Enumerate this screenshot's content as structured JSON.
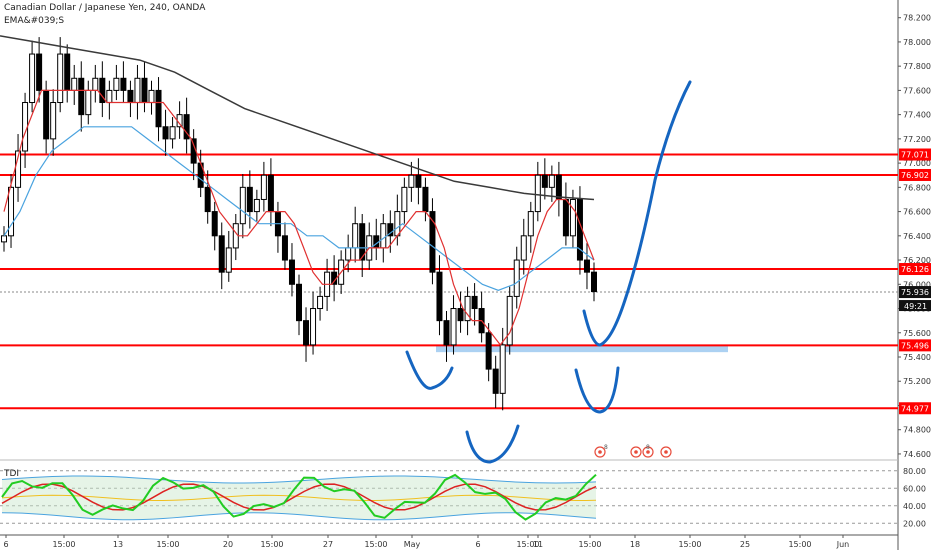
{
  "header": {
    "title": "Canadian Dollar / Japanese Yen, 240, OANDA",
    "indicator": "EMA&#039;S"
  },
  "indicator_pane": {
    "name": "TDI",
    "scale": [
      "80.00",
      "60.00",
      "40.00",
      "20.00"
    ]
  },
  "colors": {
    "candle": "#000000",
    "ema_fast": "#e03030",
    "ema_mid": "#4aa3df",
    "ema_slow": "#3a3a3a",
    "level_line": "#ff0000",
    "zone": "#9ec9f0",
    "drawing": "#1565c0",
    "tdi_green": "#22cc22",
    "tdi_red": "#dd2222",
    "tdi_band": "#4aa3df"
  },
  "chart_data": {
    "type": "candlestick",
    "title": "Canadian Dollar / Japanese Yen, 240, OANDA",
    "y_ticks": [
      "78.200",
      "78.000",
      "77.800",
      "77.600",
      "77.400",
      "77.200",
      "77.000",
      "76.800",
      "76.600",
      "76.400",
      "76.200",
      "76.000",
      "75.800",
      "75.600",
      "75.400",
      "75.200",
      "75.000",
      "74.800",
      "74.600"
    ],
    "x_ticks": [
      "6",
      "15:00",
      "13",
      "15:00",
      "20",
      "15:00",
      "27",
      "15:00",
      "May",
      "6",
      "15:00",
      "11",
      "15:00",
      "18",
      "15:00",
      "25",
      "15:00",
      "Jun"
    ],
    "ylim": [
      74.55,
      78.28
    ],
    "levels": [
      {
        "label": "77.071",
        "value": 77.071
      },
      {
        "label": "76.902",
        "value": 76.902
      },
      {
        "label": "76.126",
        "value": 76.126
      },
      {
        "label": "75.496",
        "value": 75.496
      },
      {
        "label": "74.977",
        "value": 74.977
      }
    ],
    "current_price": {
      "label": "75.936",
      "value": 75.936,
      "countdown": "49:21"
    },
    "zone": {
      "from": 75.44,
      "to": 75.5
    },
    "close_series": [
      76.4,
      76.8,
      77.1,
      77.5,
      77.9,
      77.6,
      77.2,
      77.5,
      77.9,
      77.6,
      77.7,
      77.4,
      77.6,
      77.7,
      77.5,
      77.6,
      77.7,
      77.6,
      77.5,
      77.7,
      77.5,
      77.6,
      77.3,
      77.2,
      77.3,
      77.4,
      77.2,
      77.0,
      76.8,
      76.6,
      76.4,
      76.1,
      76.3,
      76.5,
      76.8,
      76.6,
      76.7,
      76.9,
      76.6,
      76.4,
      76.2,
      76.0,
      75.7,
      75.5,
      75.8,
      75.9,
      76.1,
      76.0,
      76.2,
      76.3,
      76.5,
      76.2,
      76.4,
      76.3,
      76.5,
      76.4,
      76.6,
      76.8,
      76.9,
      76.8,
      76.6,
      76.1,
      75.7,
      75.5,
      75.8,
      75.7,
      75.9,
      75.8,
      75.6,
      75.3,
      75.1,
      75.5,
      75.9,
      76.2,
      76.4,
      76.6,
      76.9,
      76.8,
      76.9,
      76.7,
      76.4,
      76.7,
      76.2,
      76.1,
      75.94
    ],
    "ema_fast": [
      76.6,
      76.9,
      77.2,
      77.4,
      77.6,
      77.6,
      77.6,
      77.6,
      77.6,
      77.6,
      77.6,
      77.5,
      77.5,
      77.5,
      77.5,
      77.5,
      77.5,
      77.5,
      77.4,
      77.3,
      77.2,
      77.0,
      76.8,
      76.6,
      76.5,
      76.4,
      76.4,
      76.5,
      76.6,
      76.6,
      76.6,
      76.5,
      76.3,
      76.1,
      76.0,
      76.0,
      76.1,
      76.2,
      76.2,
      76.3,
      76.3,
      76.3,
      76.4,
      76.5,
      76.6,
      76.6,
      76.5,
      76.3,
      76.0,
      75.8,
      75.7,
      75.7,
      75.6,
      75.5,
      75.6,
      75.8,
      76.1,
      76.4,
      76.6,
      76.7,
      76.7,
      76.6,
      76.4,
      76.2
    ],
    "ema_mid": [
      76.4,
      76.6,
      76.9,
      77.1,
      77.2,
      77.3,
      77.3,
      77.3,
      77.3,
      77.2,
      77.1,
      77.0,
      76.9,
      76.8,
      76.7,
      76.6,
      76.5,
      76.5,
      76.5,
      76.4,
      76.4,
      76.3,
      76.3,
      76.3,
      76.4,
      76.5,
      76.4,
      76.3,
      76.2,
      76.1,
      76.0,
      75.95,
      76.0,
      76.1,
      76.2,
      76.3,
      76.3,
      76.2
    ],
    "ema_slow": [
      78.05,
      78.0,
      77.95,
      77.9,
      77.85,
      77.75,
      77.6,
      77.45,
      77.35,
      77.25,
      77.15,
      77.05,
      76.95,
      76.85,
      76.8,
      76.75,
      76.72,
      76.7
    ]
  },
  "events": [
    "8",
    "8"
  ]
}
